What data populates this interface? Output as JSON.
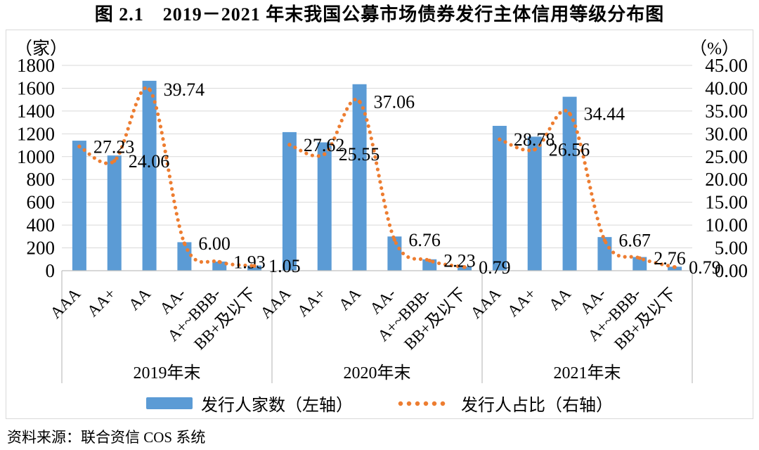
{
  "title": "图 2.1　2019－2021 年末我国公募市场债券发行主体信用等级分布图",
  "source_note": "资料来源：联合资信 COS 系统",
  "chart_data": {
    "type": "combo: grouped bar (left axis) + dotted line (right axis)",
    "left_axis": {
      "unit": "（家）",
      "min": 0,
      "max": 1800,
      "step": 200,
      "ticks": [
        "1800",
        "1600",
        "1400",
        "1200",
        "1000",
        "800",
        "600",
        "400",
        "200",
        "0"
      ]
    },
    "right_axis": {
      "unit": "（%）",
      "min": 0,
      "max": 45,
      "step": 5,
      "ticks": [
        "45.00",
        "40.00",
        "35.00",
        "30.00",
        "25.00",
        "20.00",
        "15.00",
        "10.00",
        "5.00",
        "0.00"
      ]
    },
    "categories": [
      "AAA",
      "AA+",
      "AA",
      "AA-",
      "A+~BBB-",
      "BB+及以下"
    ],
    "groups": [
      "2019年末",
      "2020年末",
      "2021年末"
    ],
    "bar_series": {
      "name": "发行人家数（左轴）",
      "axis": "left",
      "color": "#5B9BD5",
      "values": [
        [
          1140,
          1010,
          1665,
          250,
          80,
          45
        ],
        [
          1215,
          1125,
          1635,
          300,
          100,
          35
        ],
        [
          1270,
          1175,
          1525,
          295,
          120,
          35
        ]
      ]
    },
    "line_series": {
      "name": "发行人占比（右轴）",
      "axis": "right",
      "color": "#ED7D31",
      "style": "dotted",
      "values": [
        [
          27.23,
          24.06,
          39.74,
          6.0,
          1.93,
          1.05
        ],
        [
          27.62,
          25.55,
          37.06,
          6.76,
          2.23,
          0.79
        ],
        [
          28.78,
          26.56,
          34.44,
          6.67,
          2.76,
          0.79
        ]
      ],
      "point_labels": [
        [
          "27.23",
          "24.06",
          "39.74",
          "6.00",
          "1.93",
          "1.05"
        ],
        [
          "27.62",
          "25.55",
          "37.06",
          "6.76",
          "2.23",
          "0.79"
        ],
        [
          "28.78",
          "26.56",
          "34.44",
          "6.67",
          "2.76",
          "0.79"
        ]
      ]
    },
    "legend": [
      "发行人家数（左轴）",
      "发行人占比（右轴）"
    ],
    "legend_position": "bottom",
    "gridlines": "horizontal",
    "colors": {
      "bar": "#5B9BD5",
      "line": "#ED7D31",
      "gridline": "#D9D9D9",
      "axis_line": "#BFBFBF",
      "frame_border": "#D9D9D9",
      "text": "#000000"
    }
  }
}
